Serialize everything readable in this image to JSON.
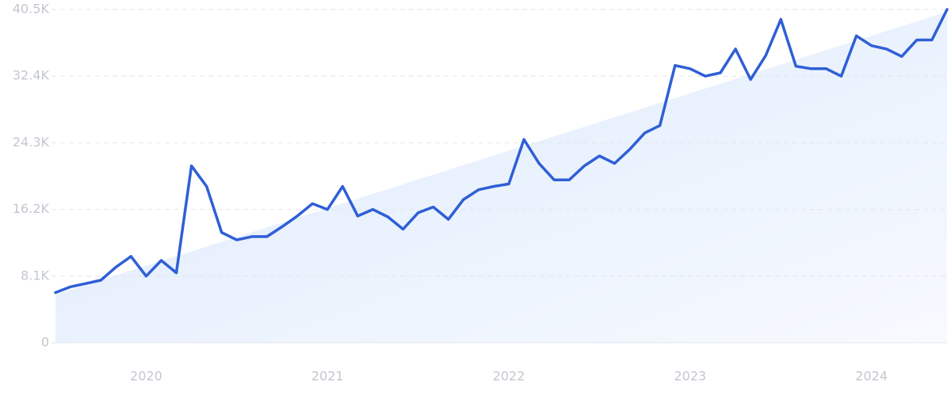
{
  "chart_data": {
    "type": "line",
    "categories": [
      null,
      null,
      null,
      null,
      null,
      null,
      "2020",
      null,
      null,
      null,
      null,
      null,
      null,
      null,
      null,
      null,
      null,
      null,
      "2021",
      null,
      null,
      null,
      null,
      null,
      null,
      null,
      null,
      null,
      null,
      null,
      "2022",
      null,
      null,
      null,
      null,
      null,
      null,
      null,
      null,
      null,
      null,
      null,
      "2023",
      null,
      null,
      null,
      null,
      null,
      null,
      null,
      null,
      null,
      null,
      null,
      "2024",
      null,
      null,
      null,
      null,
      null
    ],
    "series": [
      {
        "name": null,
        "color": "#2f5fd6",
        "values": [
          6100,
          6800,
          7200,
          7600,
          9200,
          10500,
          8100,
          10000,
          8500,
          21500,
          19000,
          13400,
          12500,
          12900,
          12900,
          14100,
          15400,
          16900,
          16200,
          19000,
          15400,
          16200,
          15300,
          13800,
          15800,
          16500,
          15000,
          17400,
          18600,
          19000,
          19300,
          24700,
          21800,
          19800,
          19800,
          21500,
          22700,
          21800,
          23500,
          25500,
          26400,
          33700,
          33300,
          32400,
          32800,
          35700,
          32000,
          34900,
          39300,
          33600,
          33300,
          33300,
          32400,
          37300,
          36100,
          35700,
          34800,
          36800,
          36800,
          40500
        ]
      }
    ],
    "ylim": [
      0,
      40500
    ],
    "yticks": [
      0,
      {
        "value": 8100,
        "label": "8.1K"
      },
      {
        "value": 16200,
        "label": "16.2K"
      },
      {
        "value": 24300,
        "label": "24.3K"
      },
      {
        "value": 32400,
        "label": "32.4K"
      },
      {
        "value": 40500,
        "label": "40.5K"
      }
    ],
    "grid": true
  }
}
